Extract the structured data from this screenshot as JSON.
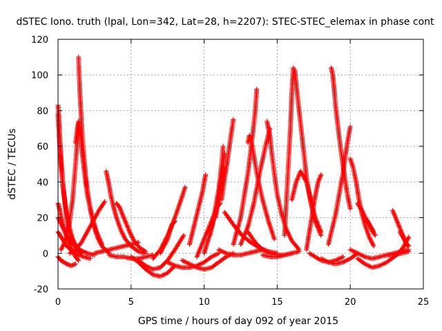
{
  "chart_data": {
    "type": "scatter",
    "title": "dSTEC Iono. truth (lpal, Lon=342, Lat=28, h=2207): STEC-STEC_elemax in phase cont",
    "xlabel": "GPS time / hours of day 092 of year 2015",
    "ylabel": "dSTEC  / TECUs",
    "xlim": [
      0,
      25
    ],
    "ylim": [
      -20,
      120
    ],
    "xticks": [
      0,
      5,
      10,
      15,
      20,
      25
    ],
    "yticks": [
      -20,
      0,
      20,
      40,
      60,
      80,
      100,
      120
    ],
    "grid": true,
    "legend": "none",
    "marker": "plus",
    "color": "#ff0000",
    "series": [
      {
        "x": [
          0.0,
          0.05,
          0.1,
          0.15,
          0.2,
          0.3,
          0.4,
          0.5,
          0.6,
          0.8,
          1.0,
          1.2,
          1.4,
          1.6
        ],
        "y": [
          83,
          78,
          70,
          62,
          54,
          43,
          34,
          26,
          19,
          12,
          7,
          4,
          1,
          0
        ]
      },
      {
        "x": [
          0.0,
          0.05,
          0.1,
          0.2,
          0.3,
          0.45,
          0.6,
          0.8,
          1.0,
          1.3,
          1.6
        ],
        "y": [
          78,
          70,
          62,
          50,
          40,
          30,
          22,
          14,
          8,
          3,
          0
        ]
      },
      {
        "x": [
          0.0,
          0.1,
          0.2,
          0.4,
          0.6,
          0.8,
          1.0,
          1.2,
          1.4
        ],
        "y": [
          28,
          25,
          21,
          14,
          9,
          5,
          1,
          -2,
          -4
        ]
      },
      {
        "x": [
          0.0,
          0.2,
          0.4,
          0.6,
          0.9,
          1.2
        ],
        "y": [
          -2,
          -4,
          -5,
          -6,
          -7,
          -6
        ]
      },
      {
        "x": [
          0.0,
          0.3,
          0.6,
          1.0,
          1.5,
          2.0,
          2.5
        ],
        "y": [
          20,
          15,
          10,
          5,
          2,
          0,
          -1
        ]
      },
      {
        "x": [
          0.0,
          0.3,
          0.6,
          1.0,
          1.4,
          1.8,
          2.2
        ],
        "y": [
          12,
          8,
          4,
          1,
          -1,
          -2,
          -3
        ]
      },
      {
        "x": [
          0.2,
          0.4,
          0.6,
          0.8,
          1.0,
          1.2,
          1.4
        ],
        "y": [
          2,
          5,
          10,
          18,
          30,
          50,
          72
        ]
      },
      {
        "x": [
          1.4,
          1.45,
          1.5,
          1.55,
          1.6,
          1.7,
          1.8,
          1.9,
          2.0,
          2.2,
          2.4,
          2.7,
          3.0,
          3.5
        ],
        "y": [
          110,
          100,
          90,
          82,
          75,
          62,
          52,
          43,
          36,
          25,
          17,
          9,
          4,
          0
        ]
      },
      {
        "x": [
          1.2,
          1.3,
          1.4,
          1.5,
          1.6,
          1.8,
          2.0,
          2.3,
          2.6,
          3.0
        ],
        "y": [
          62,
          68,
          74,
          70,
          60,
          46,
          33,
          22,
          13,
          5
        ]
      },
      {
        "x": [
          0.8,
          1.2,
          1.6,
          2.0,
          2.4,
          2.8,
          3.2
        ],
        "y": [
          0,
          2,
          6,
          12,
          18,
          24,
          29
        ]
      },
      {
        "x": [
          3.3,
          3.4,
          3.5,
          3.6,
          3.8,
          4.0,
          4.3,
          4.6,
          5.0,
          5.5,
          6.0
        ],
        "y": [
          46,
          42,
          38,
          33,
          26,
          20,
          13,
          8,
          4,
          1,
          0
        ]
      },
      {
        "x": [
          4.0,
          4.2,
          4.4,
          4.6,
          4.9,
          5.2,
          5.6,
          6.0
        ],
        "y": [
          28,
          26,
          22,
          18,
          12,
          7,
          3,
          1
        ]
      },
      {
        "x": [
          2.5,
          3.0,
          3.5,
          4.0,
          4.5,
          5.0,
          5.5
        ],
        "y": [
          0,
          1,
          2,
          3,
          4,
          5,
          6
        ]
      },
      {
        "x": [
          3.5,
          4.0,
          4.5,
          5.0,
          5.5,
          6.0,
          6.5
        ],
        "y": [
          -1,
          -2,
          -2,
          -3,
          -3,
          -2,
          -1
        ]
      },
      {
        "x": [
          5.0,
          5.5,
          6.0,
          6.5,
          7.0,
          7.5,
          8.0
        ],
        "y": [
          -2,
          -5,
          -9,
          -12,
          -13,
          -11,
          -7
        ]
      },
      {
        "x": [
          5.5,
          6.0,
          6.5,
          7.0,
          7.5,
          8.0,
          8.6
        ],
        "y": [
          -4,
          -7,
          -9,
          -8,
          -4,
          2,
          10
        ]
      },
      {
        "x": [
          6.5,
          7.0,
          7.5,
          8.0,
          8.5,
          8.7
        ],
        "y": [
          -3,
          2,
          10,
          20,
          32,
          37
        ]
      },
      {
        "x": [
          7.0,
          7.5,
          7.8,
          8.0
        ],
        "y": [
          0,
          8,
          16,
          18
        ]
      },
      {
        "x": [
          7.5,
          8.0,
          8.5,
          9.0,
          9.5,
          10.0,
          10.5,
          11.0
        ],
        "y": [
          -5,
          -7,
          -8,
          -8,
          -7,
          -5,
          -2,
          0
        ]
      },
      {
        "x": [
          8.5,
          9.0,
          9.5,
          10.0,
          10.5,
          11.0,
          11.5,
          12.0
        ],
        "y": [
          -4,
          -6,
          -8,
          -9,
          -8,
          -5,
          -2,
          0
        ]
      },
      {
        "x": [
          9.0,
          9.3,
          9.6,
          9.9,
          10.0,
          10.1
        ],
        "y": [
          5,
          15,
          25,
          35,
          40,
          44
        ]
      },
      {
        "x": [
          9.5,
          9.8,
          10.2,
          10.6,
          10.9,
          11.1
        ],
        "y": [
          -2,
          4,
          12,
          20,
          26,
          28
        ]
      },
      {
        "x": [
          10.0,
          10.3,
          10.6,
          10.9,
          11.2,
          11.4
        ],
        "y": [
          0,
          8,
          17,
          27,
          38,
          48
        ]
      },
      {
        "x": [
          10.4,
          10.7,
          11.0,
          11.2,
          11.3
        ],
        "y": [
          10,
          22,
          36,
          50,
          60
        ]
      },
      {
        "x": [
          10.8,
          11.0,
          11.2,
          11.4
        ],
        "y": [
          20,
          32,
          44,
          56
        ]
      },
      {
        "x": [
          11.2,
          11.4,
          11.6,
          11.8,
          12.0
        ],
        "y": [
          30,
          42,
          52,
          64,
          75
        ]
      },
      {
        "x": [
          11.4,
          12.0,
          12.6,
          13.2,
          13.8,
          14.4,
          15.0
        ],
        "y": [
          23,
          16,
          10,
          6,
          3,
          1,
          0
        ]
      },
      {
        "x": [
          11.0,
          11.5,
          12.0,
          12.5,
          13.0,
          13.5,
          14.0
        ],
        "y": [
          2,
          0,
          -1,
          -1,
          0,
          1,
          2
        ]
      },
      {
        "x": [
          12.0,
          12.5,
          13.0,
          13.3,
          13.5,
          13.6
        ],
        "y": [
          5,
          20,
          45,
          65,
          80,
          92
        ]
      },
      {
        "x": [
          12.5,
          13.0,
          13.4,
          13.8,
          14.2,
          14.5
        ],
        "y": [
          5,
          15,
          28,
          45,
          60,
          70
        ]
      },
      {
        "x": [
          13.0,
          13.1,
          13.3,
          13.6,
          14.0,
          14.4,
          14.8
        ],
        "y": [
          62,
          66,
          60,
          45,
          30,
          18,
          8
        ]
      },
      {
        "x": [
          14.3,
          14.4,
          14.5,
          14.6,
          14.8,
          15.0,
          15.3,
          15.6,
          16.0,
          16.5
        ],
        "y": [
          74,
          70,
          66,
          58,
          45,
          33,
          22,
          14,
          7,
          2
        ]
      },
      {
        "x": [
          13.0,
          13.5,
          14.0,
          14.5,
          15.0,
          15.5,
          16.0
        ],
        "y": [
          12,
          6,
          2,
          0,
          -1,
          -1,
          0
        ]
      },
      {
        "x": [
          14.0,
          14.5,
          15.0,
          15.5,
          16.0,
          16.5
        ],
        "y": [
          -1,
          -2,
          -2,
          -1,
          0,
          1
        ]
      },
      {
        "x": [
          15.5,
          15.7,
          15.9,
          16.0,
          16.1
        ],
        "y": [
          10,
          40,
          70,
          90,
          104
        ]
      },
      {
        "x": [
          16.2,
          16.3,
          16.5,
          16.8,
          17.0,
          17.3,
          17.6,
          18.0
        ],
        "y": [
          103,
          95,
          80,
          58,
          43,
          28,
          18,
          10
        ]
      },
      {
        "x": [
          16.0,
          16.3,
          16.6,
          17.0,
          17.3,
          17.6,
          18.0
        ],
        "y": [
          30,
          40,
          46,
          40,
          30,
          20,
          12
        ]
      },
      {
        "x": [
          17.0,
          17.2,
          17.4,
          17.6,
          17.8,
          18.0
        ],
        "y": [
          2,
          12,
          22,
          32,
          40,
          44
        ]
      },
      {
        "x": [
          17.2,
          17.6,
          18.0,
          18.5,
          19.0,
          19.5
        ],
        "y": [
          0,
          -2,
          -4,
          -5,
          -4,
          -2
        ]
      },
      {
        "x": [
          18.0,
          18.5,
          19.0,
          19.5,
          20.0,
          20.5
        ],
        "y": [
          -3,
          -5,
          -6,
          -5,
          -3,
          0
        ]
      },
      {
        "x": [
          18.7,
          18.8,
          18.9,
          19.0,
          19.2,
          19.4,
          19.6,
          19.8,
          20.0
        ],
        "y": [
          104,
          100,
          92,
          82,
          68,
          55,
          44,
          33,
          25
        ]
      },
      {
        "x": [
          18.5,
          19.0,
          19.5,
          19.8,
          20.0
        ],
        "y": [
          5,
          22,
          45,
          62,
          71
        ]
      },
      {
        "x": [
          20.0,
          20.2,
          20.4,
          20.6,
          20.8,
          21.0,
          21.3,
          21.6
        ],
        "y": [
          53,
          48,
          40,
          30,
          22,
          16,
          9,
          4
        ]
      },
      {
        "x": [
          20.5,
          20.8,
          21.1,
          21.4,
          21.7
        ],
        "y": [
          28,
          24,
          19,
          14,
          10
        ]
      },
      {
        "x": [
          21.0,
          21.2,
          21.4,
          21.6
        ],
        "y": [
          20,
          18,
          15,
          12
        ]
      },
      {
        "x": [
          20.5,
          21.0,
          21.5,
          22.0,
          22.5,
          23.0
        ],
        "y": [
          -3,
          -6,
          -8,
          -7,
          -5,
          -2
        ]
      },
      {
        "x": [
          20.0,
          20.5,
          21.0,
          21.5,
          22.0,
          22.5,
          23.0,
          23.5,
          24.0
        ],
        "y": [
          2,
          0,
          -2,
          -3,
          -2,
          -1,
          0,
          1,
          2
        ]
      },
      {
        "x": [
          22.9,
          23.1,
          23.3,
          23.5,
          23.7,
          23.9
        ],
        "y": [
          24,
          20,
          16,
          12,
          8,
          4
        ]
      },
      {
        "x": [
          23.4,
          23.6,
          23.8,
          24.0
        ],
        "y": [
          12,
          9,
          6,
          4
        ]
      },
      {
        "x": [
          23.0,
          23.3,
          23.6,
          23.8,
          24.0
        ],
        "y": [
          -2,
          0,
          3,
          6,
          9
        ]
      },
      {
        "x": [
          22.5,
          23.0,
          23.5,
          24.0
        ],
        "y": [
          -1,
          -1,
          0,
          1
        ]
      }
    ]
  }
}
